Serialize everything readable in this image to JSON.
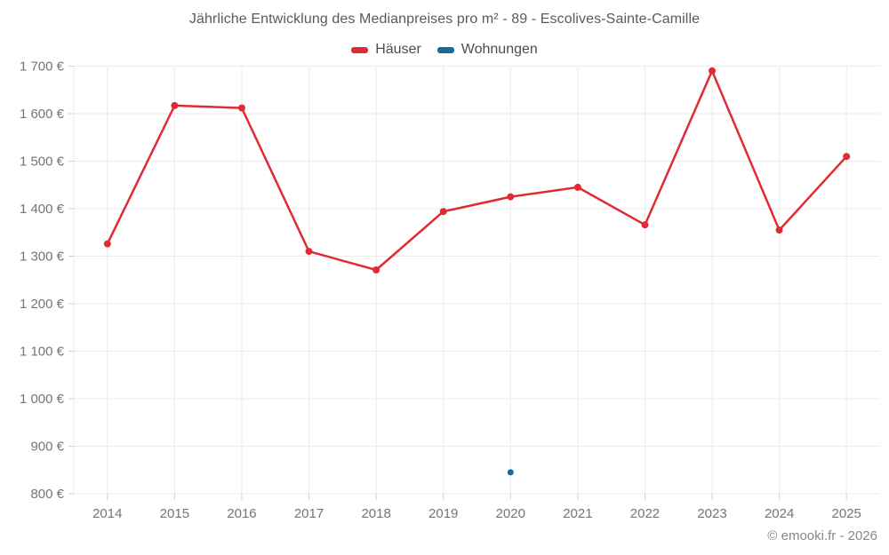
{
  "header": {
    "title": "Jährliche Entwicklung des Medianpreises pro m² - 89 - Escolives-Sainte-Camille"
  },
  "legend": {
    "items": [
      {
        "label": "Häuser",
        "color": "#e02b35"
      },
      {
        "label": "Wohnungen",
        "color": "#17699e"
      }
    ]
  },
  "chart_data": {
    "type": "line",
    "title": "Jährliche Entwicklung des Medianpreises pro m² - 89 - Escolives-Sainte-Camille",
    "categories": [
      "2014",
      "2015",
      "2016",
      "2017",
      "2018",
      "2019",
      "2020",
      "2021",
      "2022",
      "2023",
      "2024",
      "2025"
    ],
    "series": [
      {
        "name": "Häuser",
        "color": "#e02b35",
        "values": [
          1326,
          1617,
          1612,
          1310,
          1271,
          1394,
          1425,
          1445,
          1366,
          1690,
          1355,
          1510
        ]
      },
      {
        "name": "Wohnungen",
        "color": "#17699e",
        "values": [
          null,
          null,
          null,
          null,
          null,
          null,
          845,
          null,
          null,
          null,
          null,
          null
        ]
      }
    ],
    "xlabel": "",
    "ylabel": "",
    "ylim": [
      800,
      1700
    ],
    "ytick_step": 100,
    "ytick_suffix": " €",
    "grid": true,
    "legend_position": "top"
  },
  "footer": {
    "credit": "© emooki.fr - 2026"
  }
}
